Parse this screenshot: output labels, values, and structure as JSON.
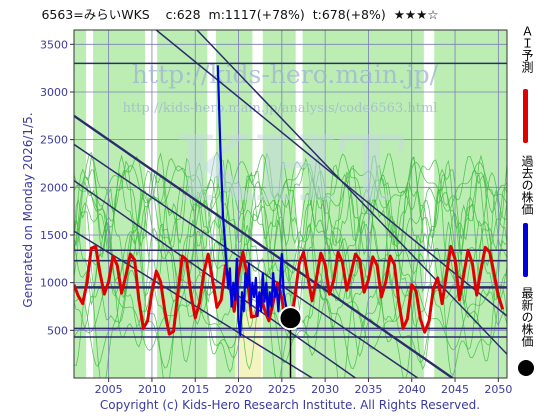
{
  "header": {
    "code_name": "6563=みらいWKS",
    "current": "c:628",
    "median": "m:1117(+78%)",
    "target": "t:678(+8%)",
    "stars": "★★★☆"
  },
  "side_text": "Generated on Monday 2026/1/5.",
  "legend": {
    "ai_label": "ＡＩ予測",
    "past_label": "過去の株価",
    "latest_label": "最新の株価"
  },
  "watermark": {
    "line1": "http://kids-hero.main.jp/",
    "line2": "http://kids-hero.main.jp/analysis/code6563.html"
  },
  "copyright": "Copyright (c) Kids-Hero Research Institute. All Rights Reserved.",
  "colors": {
    "prediction": "#e00000",
    "past_price": "#0000dd",
    "latest": "#000000",
    "channel": "#2c2c6c",
    "band_fill": "#a5e89a",
    "band_line": "#3fb83f",
    "cream": "#f4f4c0"
  },
  "chart_data": {
    "type": "line",
    "xlim": [
      2001,
      2051
    ],
    "ylim": [
      0,
      3650
    ],
    "x_ticks": [
      2005,
      2010,
      2015,
      2020,
      2025,
      2030,
      2035,
      2040,
      2045,
      2050
    ],
    "y_ticks": [
      500,
      1000,
      1500,
      2000,
      2500,
      3000,
      3500
    ],
    "horizontal_lines": [
      3300,
      1340,
      1230,
      950,
      520,
      430
    ],
    "channel_lines": [
      [
        [
          2015.2,
          3650
        ],
        [
          2051,
          250
        ]
      ],
      [
        [
          2010.5,
          3650
        ],
        [
          2051,
          650
        ]
      ],
      [
        [
          2001,
          2750
        ],
        [
          2045.5,
          -50
        ]
      ],
      [
        [
          2001,
          2450
        ],
        [
          2041.5,
          -50
        ]
      ],
      [
        [
          2001,
          2070
        ],
        [
          2033.5,
          0
        ]
      ],
      [
        [
          2001,
          1540
        ],
        [
          2028.5,
          0
        ]
      ]
    ],
    "series": [
      {
        "name": "過去の株価",
        "x": [
          2017.6,
          2017.9,
          2018.2,
          2018.4,
          2018.6,
          2018.8,
          2019.0,
          2019.2,
          2019.4,
          2019.6,
          2019.8,
          2020.0,
          2020.2,
          2020.4,
          2020.6,
          2020.8,
          2021.0,
          2021.2,
          2021.4,
          2021.6,
          2021.8,
          2022.0,
          2022.2,
          2022.4,
          2022.6,
          2022.8,
          2023.0,
          2023.2,
          2023.4,
          2023.6,
          2023.8,
          2024.0,
          2024.2,
          2024.4,
          2024.6,
          2024.8,
          2025.0,
          2025.2,
          2025.4,
          2025.6,
          2025.8
        ],
        "values": [
          3280,
          2400,
          1700,
          1450,
          1200,
          950,
          1150,
          750,
          1000,
          820,
          1250,
          600,
          450,
          900,
          700,
          1100,
          950,
          1200,
          760,
          1000,
          850,
          1050,
          650,
          900,
          700,
          1100,
          800,
          1000,
          650,
          900,
          750,
          1100,
          850,
          950,
          700,
          1000,
          1300,
          900,
          800,
          700,
          628
        ]
      },
      {
        "name": "ＡＩ予測",
        "x": [
          2001.0,
          2001.5,
          2002.0,
          2002.5,
          2003.0,
          2003.5,
          2004.0,
          2004.5,
          2005.0,
          2005.5,
          2006.0,
          2006.5,
          2007.0,
          2007.5,
          2008.0,
          2008.5,
          2009.0,
          2009.5,
          2010.0,
          2010.5,
          2011.0,
          2011.5,
          2012.0,
          2012.5,
          2013.0,
          2013.5,
          2014.0,
          2014.5,
          2015.0,
          2015.5,
          2016.0,
          2016.5,
          2017.0,
          2017.5,
          2018.0,
          2018.5,
          2019.0,
          2019.5,
          2020.0,
          2020.5,
          2021.0,
          2021.5,
          2022.0,
          2022.5,
          2023.0,
          2023.5,
          2024.0,
          2024.5,
          2025.0,
          2025.5,
          2026.0,
          2026.5,
          2027.0,
          2027.5,
          2028.0,
          2028.5,
          2029.0,
          2029.5,
          2030.0,
          2030.5,
          2031.0,
          2031.5,
          2032.0,
          2032.5,
          2033.0,
          2033.5,
          2034.0,
          2034.5,
          2035.0,
          2035.5,
          2036.0,
          2036.5,
          2037.0,
          2037.5,
          2038.0,
          2038.5,
          2039.0,
          2039.5,
          2040.0,
          2040.5,
          2041.0,
          2041.5,
          2042.0,
          2042.5,
          2043.0,
          2043.5,
          2044.0,
          2044.5,
          2045.0,
          2045.5,
          2046.0,
          2046.5,
          2047.0,
          2047.5,
          2048.0,
          2048.5,
          2049.0,
          2049.5,
          2050.0,
          2050.5
        ],
        "values": [
          980,
          860,
          780,
          1000,
          1360,
          1380,
          1100,
          880,
          1010,
          1280,
          1180,
          890,
          1080,
          1300,
          1240,
          820,
          520,
          600,
          900,
          1120,
          1010,
          700,
          460,
          490,
          900,
          1280,
          1240,
          880,
          630,
          790,
          1110,
          1300,
          1030,
          740,
          820,
          1180,
          960,
          700,
          1090,
          1320,
          1070,
          640,
          650,
          880,
          720,
          600,
          790,
          1000,
          840,
          520,
          580,
          840,
          1200,
          1320,
          1060,
          810,
          1050,
          1310,
          1190,
          880,
          1030,
          1320,
          1210,
          920,
          1100,
          1300,
          1240,
          900,
          1030,
          1270,
          1180,
          850,
          1010,
          1280,
          1190,
          800,
          520,
          620,
          980,
          910,
          620,
          480,
          600,
          940,
          1050,
          780,
          1080,
          1380,
          1250,
          820,
          1080,
          1340,
          1200,
          870,
          1140,
          1370,
          1320,
          1100,
          860,
          720
        ]
      }
    ],
    "latest_point": {
      "x": 2026.0,
      "value": 628
    }
  }
}
